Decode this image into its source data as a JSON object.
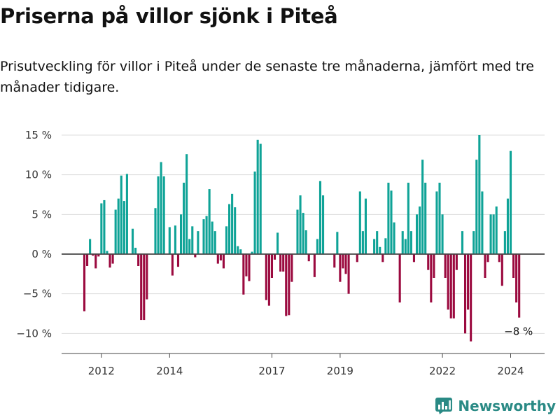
{
  "title": "Priserna på villor sjönk i Piteå",
  "subtitle": "Prisutveckling för villor i Piteå under de senaste tre månaderna, jämfört med tre månader tidigare.",
  "brand": {
    "name": "Newsworthy",
    "icon": "newsworthy-chart-icon",
    "color": "#2a8a85"
  },
  "colors": {
    "positive": "#0fa397",
    "negative": "#9b0a3f"
  },
  "chart_data": {
    "type": "bar",
    "title": "Priserna på villor sjönk i Piteå",
    "xlabel": "",
    "ylabel": "",
    "ylim": [
      -12.5,
      15.5
    ],
    "yticks": [
      {
        "value": 15,
        "label": "15 %"
      },
      {
        "value": 10,
        "label": "10 %"
      },
      {
        "value": 5,
        "label": "5 %"
      },
      {
        "value": 0,
        "label": "0 %"
      },
      {
        "value": -5,
        "label": "−5 %"
      },
      {
        "value": -10,
        "label": "−10 %"
      }
    ],
    "xticks": [
      {
        "index": 6,
        "label": "2012"
      },
      {
        "index": 30,
        "label": "2014"
      },
      {
        "index": 66,
        "label": "2017"
      },
      {
        "index": 90,
        "label": "2019"
      },
      {
        "index": 126,
        "label": "2022"
      },
      {
        "index": 150,
        "label": "2024"
      }
    ],
    "last_label": "−8 %",
    "values": [
      -7.2,
      -1.5,
      1.9,
      -0.2,
      -1.8,
      -0.3,
      6.4,
      6.8,
      0.4,
      -1.7,
      -1.2,
      5.6,
      7.0,
      9.9,
      6.7,
      10.1,
      0.0,
      3.2,
      0.8,
      -1.5,
      -8.3,
      -8.3,
      -5.7,
      0.0,
      0.0,
      5.8,
      9.8,
      11.6,
      9.8,
      0.0,
      3.4,
      -2.7,
      3.6,
      -1.6,
      5.0,
      9.0,
      12.6,
      1.9,
      3.5,
      -0.4,
      2.9,
      0.0,
      4.4,
      4.8,
      8.2,
      4.1,
      2.9,
      -1.2,
      -0.8,
      -1.8,
      3.5,
      6.3,
      7.6,
      5.9,
      1.0,
      0.6,
      -5.1,
      -2.8,
      -3.4,
      0.3,
      10.4,
      14.4,
      13.9,
      0.0,
      -5.8,
      -6.5,
      -3.0,
      -0.7,
      2.7,
      -2.2,
      -2.2,
      -7.8,
      -7.7,
      -3.5,
      0.0,
      5.6,
      7.4,
      5.2,
      3.0,
      -0.9,
      0.0,
      -2.9,
      1.9,
      9.2,
      7.4,
      0.0,
      0.0,
      0.0,
      -1.7,
      2.8,
      -3.5,
      -1.8,
      -2.5,
      -5.0,
      0.0,
      0.0,
      -1.0,
      7.9,
      2.9,
      7.0,
      0.0,
      0.0,
      1.9,
      2.9,
      0.9,
      -1.0,
      2.0,
      9.0,
      8.0,
      4.0,
      0.0,
      -6.1,
      2.9,
      1.9,
      9.0,
      2.9,
      -1.0,
      5.0,
      6.0,
      11.9,
      9.0,
      -2.0,
      -6.1,
      -3.0,
      7.9,
      9.0,
      5.0,
      -3.0,
      -7.0,
      -8.1,
      -8.1,
      -2.0,
      0.0,
      2.9,
      -10.0,
      -7.0,
      -11.0,
      2.9,
      11.9,
      15.0,
      7.9,
      -3.0,
      -1.0,
      5.0,
      5.0,
      6.0,
      -1.0,
      -4.0,
      2.9,
      7.0,
      13.0,
      -3.0,
      -6.1,
      -8.0
    ]
  }
}
